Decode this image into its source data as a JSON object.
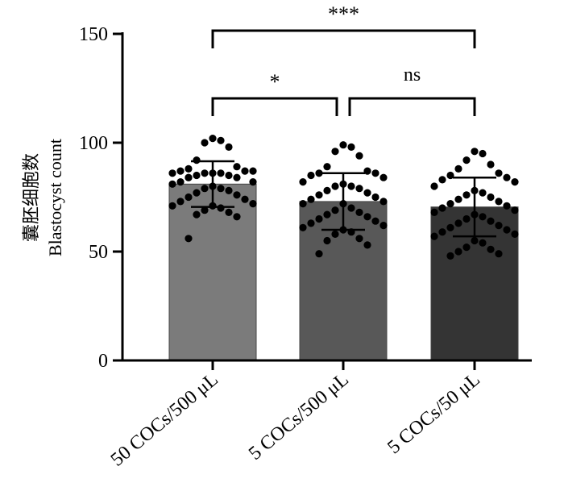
{
  "chart_data": {
    "type": "bar",
    "ylabel_cn": "囊胚细胞数",
    "ylabel": "Blastocyst count",
    "ylim": [
      0,
      150
    ],
    "yticks": [
      0,
      50,
      100,
      150
    ],
    "categories": [
      "50 COCs/500 μL",
      "5 COCs/500 μL",
      "5 COCs/50 μL"
    ],
    "means": [
      81,
      73,
      70.5
    ],
    "sd": [
      10.5,
      13,
      13.5
    ],
    "colors": [
      "#7b7b7b",
      "#585858",
      "#343434"
    ],
    "points": [
      [
        102,
        101,
        100,
        98,
        92,
        89,
        88,
        87,
        87,
        87,
        86,
        86,
        86,
        86,
        85,
        85,
        84,
        84,
        84,
        82,
        82,
        81,
        80,
        79,
        79,
        78,
        77,
        76,
        75,
        74,
        73,
        72,
        71,
        71,
        70,
        69,
        68,
        67,
        66,
        56
      ],
      [
        99,
        98,
        96,
        94,
        89,
        87,
        86,
        86,
        85,
        84,
        82,
        81,
        80,
        80,
        79,
        78,
        77,
        76,
        75,
        74,
        73,
        72,
        72,
        70,
        69,
        68,
        67,
        66,
        65,
        64,
        63,
        62,
        61,
        60,
        59,
        58,
        56,
        55,
        53,
        49
      ],
      [
        96,
        95,
        92,
        90,
        88,
        86,
        85,
        84,
        83,
        82,
        80,
        78,
        77,
        76,
        75,
        74,
        73,
        72,
        71,
        70,
        69,
        68,
        67,
        66,
        65,
        64,
        63,
        62,
        61,
        60,
        59,
        58,
        57,
        55,
        54,
        52,
        51,
        50,
        49,
        48
      ]
    ],
    "comparisons": [
      {
        "from": 0,
        "to": 2,
        "label": "***",
        "level": 2
      },
      {
        "from": 0,
        "to": 1,
        "label": "*",
        "level": 1
      },
      {
        "from": 1,
        "to": 2,
        "label": "ns",
        "level": 1
      }
    ]
  }
}
